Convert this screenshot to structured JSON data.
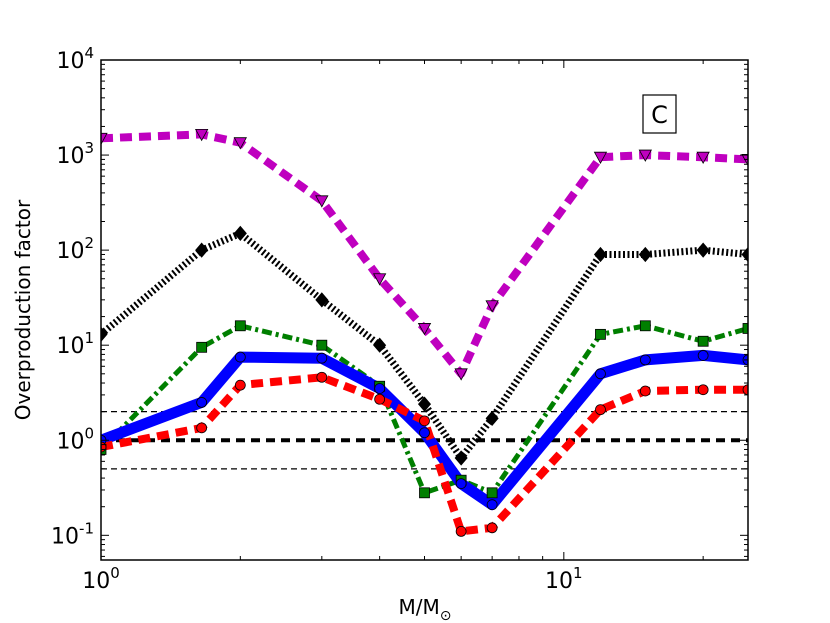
{
  "chart_data": {
    "type": "line",
    "xscale": "log",
    "yscale": "log",
    "xlim": [
      1,
      25
    ],
    "ylim": [
      0.055,
      10000
    ],
    "xlabel": {
      "main": "M/M",
      "sub": "⊙"
    },
    "ylabel": "Overproduction factor",
    "annotation": "C",
    "x_ticks": [
      {
        "value": 1,
        "base": "10",
        "exp": "0"
      },
      {
        "value": 10,
        "base": "10",
        "exp": "1"
      }
    ],
    "y_ticks": [
      {
        "value": 0.1,
        "base": "10",
        "exp": "-1"
      },
      {
        "value": 1,
        "base": "10",
        "exp": "0"
      },
      {
        "value": 10,
        "base": "10",
        "exp": "1"
      },
      {
        "value": 100,
        "base": "10",
        "exp": "2"
      },
      {
        "value": 1000,
        "base": "10",
        "exp": "3"
      },
      {
        "value": 10000,
        "base": "10",
        "exp": "4"
      }
    ],
    "reference_lines": [
      {
        "y": 2,
        "color": "#000000",
        "style": "thin-dashed"
      },
      {
        "y": 1,
        "color": "#000000",
        "style": "thick-dashed"
      },
      {
        "y": 0.5,
        "color": "#000000",
        "style": "thin-dashed"
      }
    ],
    "series": [
      {
        "name": "black",
        "color": "#000000",
        "line_style": "dotted",
        "marker": "diamond",
        "x": [
          1,
          1.65,
          2,
          3,
          4,
          5,
          6,
          7,
          12,
          15,
          20,
          25
        ],
        "y": [
          13,
          100,
          150,
          30,
          10,
          2.4,
          0.65,
          1.7,
          90,
          90,
          100,
          90
        ]
      },
      {
        "name": "magenta",
        "color": "#bf00bf",
        "line_style": "dashed",
        "marker": "triangle-down",
        "x": [
          1,
          1.65,
          2,
          3,
          4,
          5,
          6,
          7,
          12,
          15,
          20,
          25
        ],
        "y": [
          1500,
          1650,
          1350,
          330,
          50,
          15,
          5,
          26,
          950,
          1000,
          950,
          900
        ]
      },
      {
        "name": "green",
        "color": "#007f00",
        "line_style": "dash-dot",
        "marker": "square",
        "x": [
          1,
          1.65,
          2,
          3,
          4,
          5,
          6,
          7,
          12,
          15,
          20,
          25
        ],
        "y": [
          0.8,
          9.5,
          16,
          10,
          3.7,
          0.28,
          0.38,
          0.28,
          13,
          16,
          11,
          15
        ]
      },
      {
        "name": "blue",
        "color": "#0000ff",
        "line_style": "solid",
        "marker": "circle",
        "x": [
          1,
          1.65,
          2,
          3,
          4,
          5,
          6,
          7,
          12,
          15,
          20,
          25
        ],
        "y": [
          1,
          2.5,
          7.5,
          7.3,
          3.5,
          1.2,
          0.35,
          0.21,
          5,
          7,
          7.8,
          7
        ]
      },
      {
        "name": "red",
        "color": "#ff0000",
        "line_style": "dashed",
        "marker": "circle",
        "x": [
          1,
          1.65,
          2,
          3,
          4,
          5,
          6,
          7,
          12,
          15,
          20,
          25
        ],
        "y": [
          0.85,
          1.35,
          3.8,
          4.6,
          2.7,
          1.6,
          0.11,
          0.12,
          2.1,
          3.3,
          3.4,
          3.4
        ]
      }
    ]
  }
}
